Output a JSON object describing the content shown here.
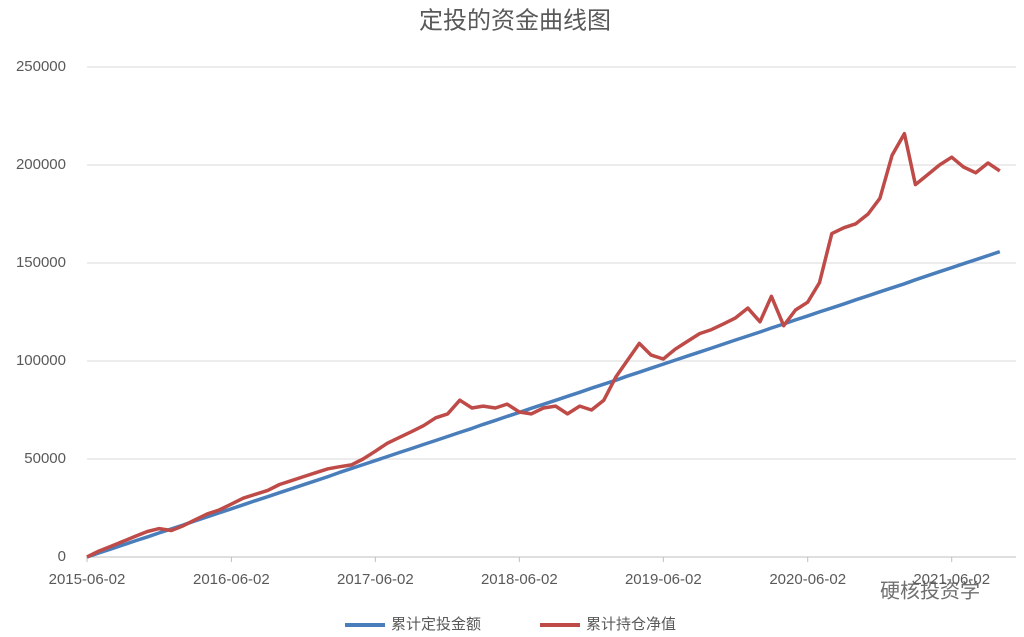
{
  "chart_data": {
    "type": "line",
    "title": "定投的资金曲线图",
    "watermark": "硬核投资学",
    "x": [
      "2015-06-02",
      "2015-07-02",
      "2015-08-02",
      "2015-09-02",
      "2015-10-02",
      "2015-11-02",
      "2015-12-02",
      "2016-01-02",
      "2016-02-02",
      "2016-03-02",
      "2016-04-02",
      "2016-05-02",
      "2016-06-02",
      "2016-07-02",
      "2016-08-02",
      "2016-09-02",
      "2016-10-02",
      "2016-11-02",
      "2016-12-02",
      "2017-01-02",
      "2017-02-02",
      "2017-03-02",
      "2017-04-02",
      "2017-05-02",
      "2017-06-02",
      "2017-07-02",
      "2017-08-02",
      "2017-09-02",
      "2017-10-02",
      "2017-11-02",
      "2017-12-02",
      "2018-01-02",
      "2018-02-02",
      "2018-03-02",
      "2018-04-02",
      "2018-05-02",
      "2018-06-02",
      "2018-07-02",
      "2018-08-02",
      "2018-09-02",
      "2018-10-02",
      "2018-11-02",
      "2018-12-02",
      "2019-01-02",
      "2019-02-02",
      "2019-03-02",
      "2019-04-02",
      "2019-05-02",
      "2019-06-02",
      "2019-07-02",
      "2019-08-02",
      "2019-09-02",
      "2019-10-02",
      "2019-11-02",
      "2019-12-02",
      "2020-01-02",
      "2020-02-02",
      "2020-03-02",
      "2020-04-02",
      "2020-05-02",
      "2020-06-02",
      "2020-07-02",
      "2020-08-02",
      "2020-09-02",
      "2020-10-02",
      "2020-11-02",
      "2020-12-02",
      "2021-01-02",
      "2021-02-02",
      "2021-03-02",
      "2021-04-02",
      "2021-05-02",
      "2021-06-02",
      "2021-07-02",
      "2021-08-02",
      "2021-09-02",
      "2021-10-02"
    ],
    "series": [
      {
        "name": "累计定投金额",
        "color": "#4a7ebb",
        "values": [
          0,
          2050,
          4100,
          6150,
          8200,
          10250,
          12300,
          14350,
          16400,
          18450,
          20500,
          22550,
          24600,
          26650,
          28700,
          30750,
          32800,
          34850,
          36900,
          38950,
          41000,
          43050,
          45100,
          47150,
          49200,
          51250,
          53300,
          55350,
          57400,
          59450,
          61500,
          63550,
          65600,
          67650,
          69700,
          71750,
          73800,
          75850,
          77900,
          79950,
          82000,
          84050,
          86100,
          88150,
          90200,
          92250,
          94300,
          96350,
          98400,
          100450,
          102500,
          104550,
          106600,
          108650,
          110700,
          112750,
          114800,
          116850,
          118900,
          120950,
          123000,
          125050,
          127100,
          129150,
          131200,
          133250,
          135300,
          137350,
          139400,
          141450,
          143500,
          145550,
          147600,
          149650,
          151700,
          153750,
          155800
        ]
      },
      {
        "name": "累计持仓净值",
        "color": "#be4b48",
        "values": [
          0,
          3000,
          5500,
          8000,
          10500,
          13000,
          14500,
          13500,
          16000,
          19000,
          22000,
          24000,
          27000,
          30000,
          32000,
          34000,
          37000,
          39000,
          41000,
          43000,
          45000,
          46000,
          47000,
          50000,
          54000,
          58000,
          61000,
          64000,
          67000,
          71000,
          73000,
          80000,
          76000,
          77000,
          76000,
          78000,
          74000,
          73000,
          76000,
          77000,
          73000,
          77000,
          75000,
          80000,
          92000,
          100000,
          109000,
          103000,
          101000,
          106000,
          110000,
          114000,
          116000,
          119000,
          122000,
          127000,
          120000,
          133000,
          118000,
          126000,
          130000,
          140000,
          165000,
          168000,
          170000,
          175000,
          183000,
          205000,
          216000,
          190000,
          195000,
          200000,
          204000,
          199000,
          196000,
          201000,
          197000
        ]
      }
    ],
    "xlim": [
      "2015-06-02",
      "2021-11-12"
    ],
    "xticks": [
      "2015-06-02",
      "2016-06-02",
      "2017-06-02",
      "2018-06-02",
      "2019-06-02",
      "2020-06-02",
      "2021-06-02"
    ],
    "ylim": [
      0,
      250000
    ],
    "yticks": [
      0,
      50000,
      100000,
      150000,
      200000,
      250000
    ],
    "grid": true,
    "legend": "bottom"
  }
}
